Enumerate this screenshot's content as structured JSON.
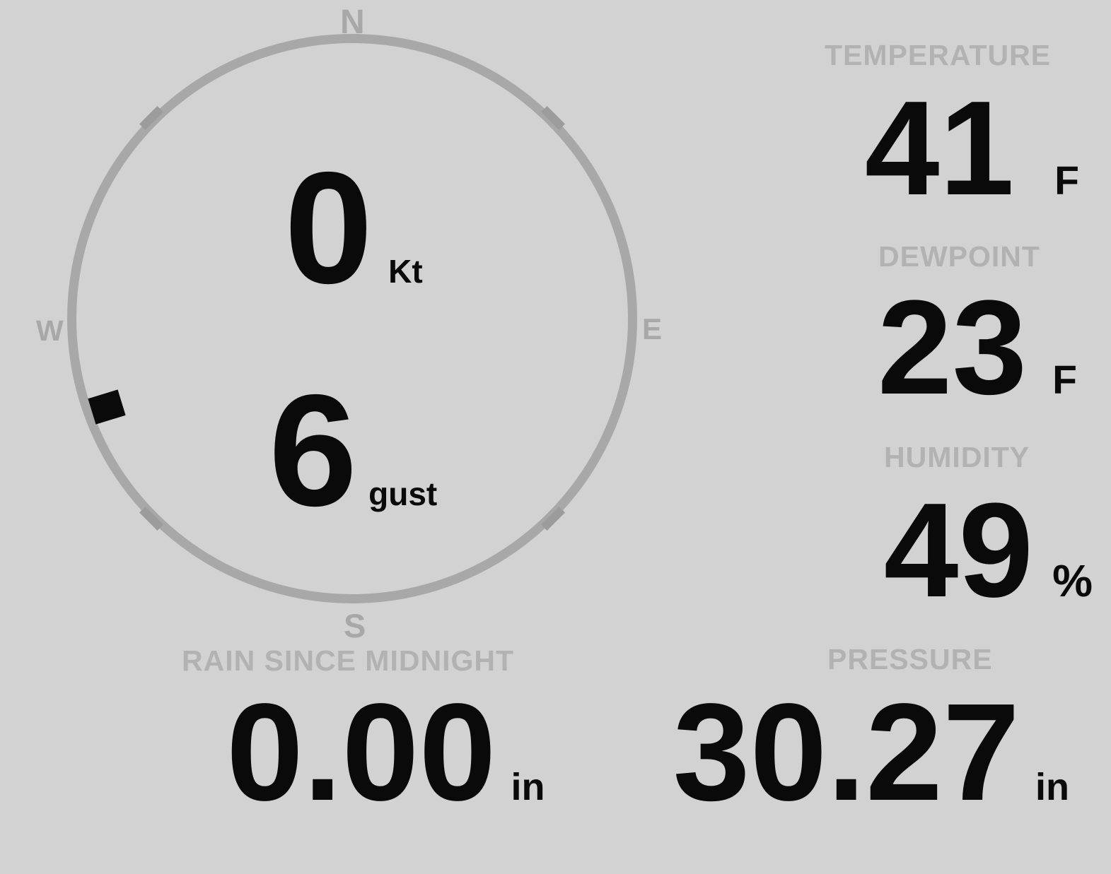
{
  "app": {
    "name": "weather-station-console"
  },
  "colors": {
    "background": "#d2d2d2",
    "dial": "#a8a8a8",
    "tick": "#9c9c9c",
    "label": "#b2b2b2",
    "value": "#0a0a0a",
    "marker": "#0a0a0a"
  },
  "compass": {
    "cardinals": {
      "north": "N",
      "east": "E",
      "south": "S",
      "west": "W"
    },
    "speed": {
      "value": "0",
      "unit": "Kt"
    },
    "gust": {
      "value": "6",
      "unit": "gust"
    },
    "direction_degrees": 250
  },
  "panels": {
    "temperature": {
      "label": "TEMPERATURE",
      "value": "41",
      "unit": "F"
    },
    "dewpoint": {
      "label": "DEWPOINT",
      "value": "23",
      "unit": "F"
    },
    "humidity": {
      "label": "HUMIDITY",
      "value": "49",
      "unit": "%"
    },
    "rain": {
      "label": "RAIN SINCE MIDNIGHT",
      "value": "0.00",
      "unit": "in"
    },
    "pressure": {
      "label": "PRESSURE",
      "value": "30.27",
      "unit": "in"
    }
  }
}
